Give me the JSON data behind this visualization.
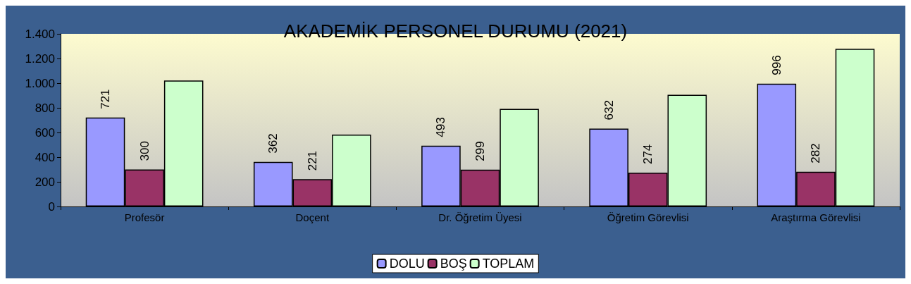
{
  "chart_data": {
    "type": "bar",
    "title": "AKADEMİK PERSONEL DURUMU (2021)",
    "categories": [
      "Profesör",
      "Doçent",
      "Dr. Öğretim Üyesi",
      "Öğretim Görevlisi",
      "Araştırma Görevlisi"
    ],
    "series": [
      {
        "name": "DOLU",
        "color": "#9999ff",
        "values": [
          721,
          362,
          493,
          632,
          996
        ],
        "value_labels": [
          "721",
          "362",
          "493",
          "632",
          "996"
        ]
      },
      {
        "name": "BOŞ",
        "color": "#993366",
        "values": [
          300,
          221,
          299,
          274,
          282
        ],
        "value_labels": [
          "300",
          "221",
          "299",
          "274",
          "282"
        ]
      },
      {
        "name": "TOPLAM",
        "color": "#ccffcc",
        "values": [
          1021,
          583,
          792,
          906,
          1278
        ]
      }
    ],
    "ylim": [
      0,
      1400
    ],
    "yticks": [
      0,
      200,
      400,
      600,
      800,
      {
        "value": 1000,
        "label": "1.000"
      },
      {
        "value": 1200,
        "label": "1.200"
      },
      {
        "value": 1400,
        "label": "1.400"
      }
    ],
    "grid": false,
    "legend": "bottom"
  }
}
